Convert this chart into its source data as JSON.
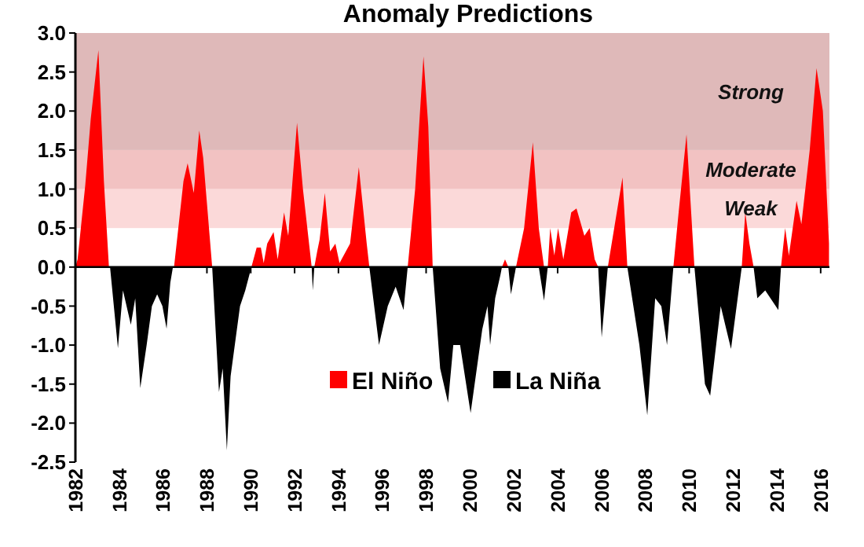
{
  "chart_data": {
    "type": "area",
    "title": "Anomaly Predictions",
    "xlim": [
      1982,
      2016.4
    ],
    "xticks": [
      1982,
      1984,
      1986,
      1988,
      1990,
      1992,
      1994,
      1996,
      1998,
      2000,
      2002,
      2004,
      2006,
      2008,
      2010,
      2012,
      2014,
      2016
    ],
    "ylim": [
      -2.5,
      3.0
    ],
    "yticks": [
      {
        "value": -2.5,
        "label": "-2.5"
      },
      {
        "value": -2,
        "label": "-2.0"
      },
      {
        "value": -1.5,
        "label": "-1.5"
      },
      {
        "value": -1,
        "label": "-1.0"
      },
      {
        "value": -0.5,
        "label": "-0.5"
      },
      {
        "value": 0,
        "label": "0.0"
      },
      {
        "value": 0.5,
        "label": "0.5"
      },
      {
        "value": 1,
        "label": "1.0"
      },
      {
        "value": 1.5,
        "label": "1.5"
      },
      {
        "value": 2,
        "label": "2.0"
      },
      {
        "value": 2.5,
        "label": "2.5"
      },
      {
        "value": 3,
        "label": "3.0"
      }
    ],
    "legend": "bottom",
    "bands": [
      {
        "axis": "y",
        "from": 0.5,
        "to": 1.0,
        "label": "Weak",
        "color": "#fbd9d9"
      },
      {
        "axis": "y",
        "from": 1.0,
        "to": 1.5,
        "label": "Moderate",
        "color": "#f2c2c2"
      },
      {
        "axis": "y",
        "from": 1.5,
        "to": 3.0,
        "label": "Strong",
        "color": "#dfb9b9"
      }
    ],
    "series": [
      {
        "name": "El Niño",
        "color": "#ff0000",
        "x": [
          1982,
          1982.1,
          1982.45,
          1982.7,
          1983.05,
          1983.3,
          1983.53,
          1986.5,
          1986.93,
          1987.12,
          1987.4,
          1987.65,
          1987.83,
          1988.24,
          1990.03,
          1990.27,
          1990.46,
          1990.59,
          1990.75,
          1991.04,
          1991.23,
          1991.52,
          1991.71,
          1992.11,
          1992.38,
          1992.78,
          1992.9,
          1993.03,
          1993.14,
          1993.38,
          1993.62,
          1993.86,
          1994.05,
          1994.53,
          1994.93,
          1995.29,
          1995.41,
          1997.16,
          1997.5,
          1997.88,
          1998.1,
          1998.3,
          2001.46,
          2001.6,
          2001.75,
          2002.1,
          2002.47,
          2002.87,
          2003.14,
          2003.38,
          2003.55,
          2003.66,
          2003.85,
          2004.02,
          2004.26,
          2004.62,
          2004.86,
          2005.22,
          2005.46,
          2005.69,
          2005.85,
          2006.29,
          2006.96,
          2007.18,
          2009.28,
          2009.52,
          2009.88,
          2010.24,
          2012.4,
          2012.56,
          2012.75,
          2012.94,
          2014.19,
          2014.38,
          2014.55,
          2014.9,
          2015.12,
          2015.5,
          2015.81,
          2016.1,
          2016.38
        ],
        "values": [
          0,
          0.1,
          1.05,
          1.9,
          2.78,
          1.1,
          0,
          0,
          1.1,
          1.33,
          0.95,
          1.75,
          1.4,
          0,
          0,
          0.25,
          0.25,
          0.05,
          0.3,
          0.45,
          0.1,
          0.7,
          0.4,
          1.85,
          1.0,
          0,
          0,
          0.2,
          0.35,
          0.95,
          0.2,
          0.3,
          0.05,
          0.3,
          1.28,
          0.3,
          0,
          0,
          1.0,
          2.7,
          1.8,
          0,
          0,
          0.1,
          0,
          0,
          0.5,
          1.6,
          0.5,
          0,
          0,
          0.5,
          0.15,
          0.5,
          0.1,
          0.7,
          0.75,
          0.4,
          0.5,
          0.1,
          0,
          0,
          1.15,
          0,
          0,
          0.7,
          1.7,
          0,
          0,
          0.7,
          0.3,
          0,
          0,
          0.5,
          0.15,
          0.85,
          0.55,
          1.5,
          2.55,
          2.0,
          0.3
        ]
      },
      {
        "name": "La Niña",
        "color": "#000000",
        "x": [
          1983.53,
          1983.58,
          1983.94,
          1984.17,
          1984.53,
          1984.73,
          1984.96,
          1985.25,
          1985.49,
          1985.73,
          1985.97,
          1986.16,
          1986.33,
          1986.45,
          1988.24,
          1988.55,
          1988.72,
          1988.91,
          1989.08,
          1989.51,
          1989.75,
          1990.03,
          1992.78,
          1992.83,
          1992.9,
          1995.41,
          1995.85,
          1996.25,
          1996.61,
          1996.97,
          1997.16,
          1998.3,
          1998.64,
          1999.0,
          1999.24,
          1999.55,
          2000.03,
          2000.56,
          2000.8,
          2000.92,
          2001.15,
          2001.39,
          2001.46,
          2001.75,
          2001.87,
          2002.1,
          2003.14,
          2003.38,
          2003.55,
          2005.85,
          2006.01,
          2006.29,
          2007.18,
          2007.73,
          2008.09,
          2008.45,
          2008.73,
          2008.99,
          2009.28,
          2010.24,
          2010.72,
          2010.96,
          2011.44,
          2011.91,
          2012.4,
          2012.94,
          2013.11,
          2013.47,
          2013.71,
          2014.07,
          2014.19
        ],
        "values": [
          0,
          0,
          -1.04,
          -0.3,
          -0.74,
          -0.4,
          -1.55,
          -1.0,
          -0.5,
          -0.35,
          -0.5,
          -0.79,
          -0.2,
          0,
          0,
          -1.6,
          -1.3,
          -2.35,
          -1.4,
          -0.5,
          -0.3,
          0,
          0,
          -0.3,
          0,
          0,
          -1.0,
          -0.5,
          -0.25,
          -0.55,
          0,
          0,
          -1.3,
          -1.74,
          -1.0,
          -1.0,
          -1.87,
          -0.8,
          -0.5,
          -1.0,
          -0.4,
          -0.1,
          0,
          0,
          -0.35,
          0,
          0,
          -0.43,
          0,
          0,
          -0.9,
          0,
          0,
          -1.0,
          -1.9,
          -0.4,
          -0.5,
          -1.0,
          0,
          0,
          -1.5,
          -1.65,
          -0.5,
          -1.05,
          0,
          0,
          -0.4,
          -0.3,
          -0.4,
          -0.55,
          0
        ]
      }
    ]
  }
}
